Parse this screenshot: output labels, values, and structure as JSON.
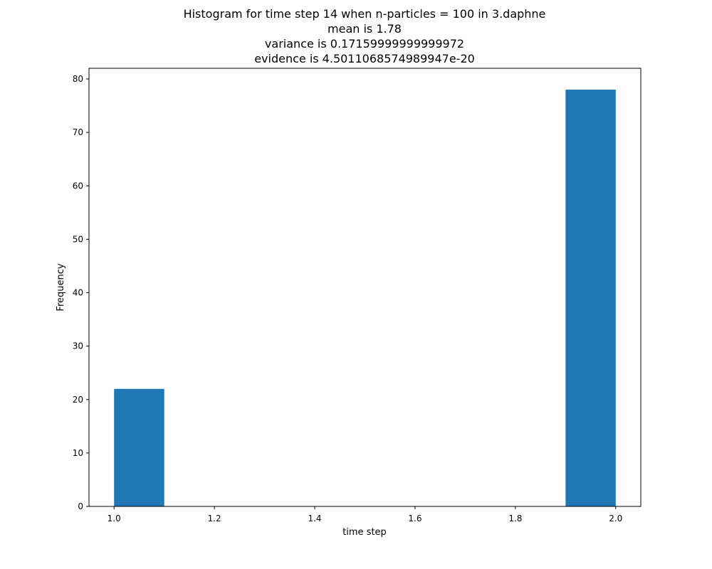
{
  "chart_data": {
    "type": "bar",
    "title_lines": [
      "Histogram for time step 14 when n-particles = 100 in 3.daphne",
      "mean is 1.78",
      "variance is 0.17159999999999972",
      "evidence is 4.5011068574989947e-20"
    ],
    "xlabel": "time step",
    "ylabel": "Frequency",
    "xlim": [
      0.95,
      2.05
    ],
    "ylim": [
      0,
      82
    ],
    "xticks": [
      1.0,
      1.2,
      1.4,
      1.6,
      1.8,
      2.0
    ],
    "xtick_labels": [
      "1.0",
      "1.2",
      "1.4",
      "1.6",
      "1.8",
      "2.0"
    ],
    "yticks": [
      0,
      10,
      20,
      30,
      40,
      50,
      60,
      70,
      80
    ],
    "ytick_labels": [
      "0",
      "10",
      "20",
      "30",
      "40",
      "50",
      "60",
      "70",
      "80"
    ],
    "bins": [
      {
        "x0": 1.0,
        "x1": 1.1,
        "count": 22
      },
      {
        "x0": 1.1,
        "x1": 1.2,
        "count": 0
      },
      {
        "x0": 1.2,
        "x1": 1.3,
        "count": 0
      },
      {
        "x0": 1.3,
        "x1": 1.4,
        "count": 0
      },
      {
        "x0": 1.4,
        "x1": 1.5,
        "count": 0
      },
      {
        "x0": 1.5,
        "x1": 1.6,
        "count": 0
      },
      {
        "x0": 1.6,
        "x1": 1.7,
        "count": 0
      },
      {
        "x0": 1.7,
        "x1": 1.8,
        "count": 0
      },
      {
        "x0": 1.8,
        "x1": 1.9,
        "count": 0
      },
      {
        "x0": 1.9,
        "x1": 2.0,
        "count": 78
      }
    ],
    "bar_color": "#1f77b4",
    "grid": false,
    "legend": "none"
  }
}
